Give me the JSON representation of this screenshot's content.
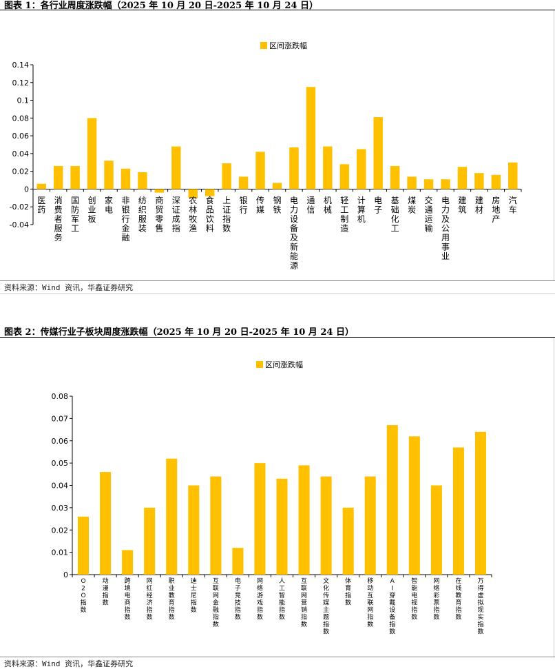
{
  "figure1": {
    "title": "图表 1：各行业周度涨跌幅（2025 年 10 月 20 日-2025 年 10 月 24 日）",
    "source": "资料来源：Wind 资讯，华鑫证券研究",
    "chart_data": {
      "type": "bar",
      "legend": "区间涨跌幅",
      "categories": [
        "医药",
        "消费者服务",
        "国防军工",
        "创业板",
        "家电",
        "非银行金融",
        "纺织服装",
        "商贸零售",
        "深证成指",
        "农林牧渔",
        "食品饮料",
        "上证指数",
        "银行",
        "传媒",
        "钢铁",
        "电力设备及新能源",
        "通信",
        "机械",
        "轻工制造",
        "计算机",
        "电子",
        "基础化工",
        "煤炭",
        "交通运输",
        "电力及公用事业",
        "建筑",
        "建材",
        "房地产",
        "汽车"
      ],
      "values": [
        0.006,
        0.026,
        0.026,
        0.08,
        0.032,
        0.023,
        0.019,
        -0.004,
        0.048,
        -0.01,
        -0.008,
        0.029,
        0.014,
        0.042,
        0.007,
        0.047,
        0.115,
        0.048,
        0.028,
        0.045,
        0.081,
        0.026,
        0.014,
        0.011,
        0.011,
        0.025,
        0.018,
        0.016,
        0.03
      ],
      "yticks": [
        "0.14",
        "0.12",
        "0.1",
        "0.08",
        "0.06",
        "0.04",
        "0.02",
        "0",
        "-0.02",
        "-0.04"
      ],
      "ylim": [
        -0.04,
        0.14
      ],
      "color": "#FFC000"
    }
  },
  "figure2": {
    "title": "图表 2：传媒行业子板块周度涨跌幅（2025 年 10 月 20 日-2025 年 10 月 24 日）",
    "source": "资料来源：Wind 资讯，华鑫证券研究",
    "chart_data": {
      "type": "bar",
      "legend": "区间涨跌幅",
      "categories": [
        "O2O指数",
        "动漫指数",
        "跨境电商指数",
        "网红经济指数",
        "职业教育指数",
        "迪士尼指数",
        "互联网金融指数",
        "电子竞技指数",
        "网络游戏指数",
        "人工智能指数",
        "互联网营销指数",
        "文化传媒主题指数",
        "体育指数",
        "移动互联网指数",
        "AI穿戴设备指数",
        "智能电视指数",
        "网络彩票指数",
        "在线教育指数",
        "万得虚拟现实指数"
      ],
      "values": [
        0.026,
        0.046,
        0.011,
        0.03,
        0.052,
        0.04,
        0.044,
        0.012,
        0.05,
        0.043,
        0.049,
        0.044,
        0.03,
        0.044,
        0.067,
        0.062,
        0.04,
        0.057,
        0.064
      ],
      "yticks": [
        "0.08",
        "0.07",
        "0.06",
        "0.05",
        "0.04",
        "0.03",
        "0.02",
        "0.01",
        "0"
      ],
      "ylim": [
        0,
        0.08
      ],
      "color": "#FFC000"
    }
  }
}
